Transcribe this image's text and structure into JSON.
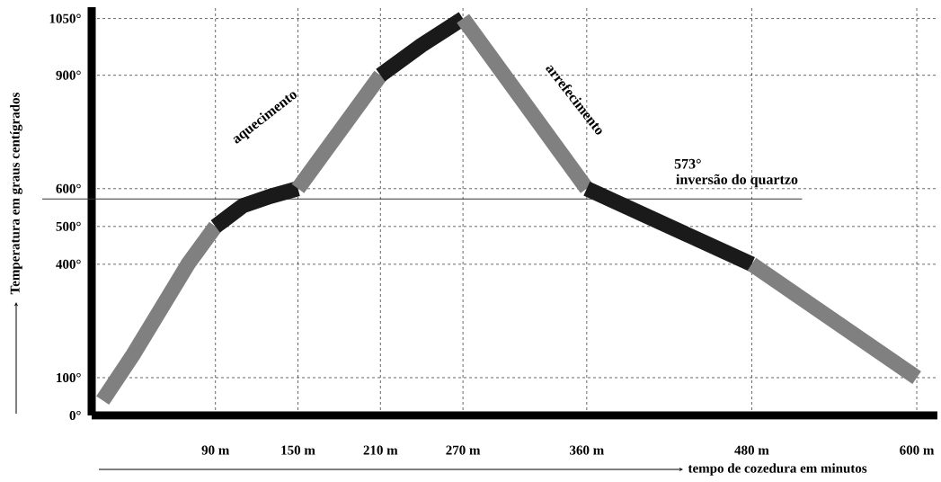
{
  "chart_data": {
    "type": "line",
    "xlabel": "tempo de cozedura em minutos",
    "ylabel": "Temperatura em graus centígrados",
    "xlim": [
      0,
      615
    ],
    "ylim": [
      0,
      1080
    ],
    "xticks": [
      {
        "value": 90,
        "label": "90 m"
      },
      {
        "value": 150,
        "label": "150 m"
      },
      {
        "value": 210,
        "label": "210 m"
      },
      {
        "value": 270,
        "label": "270 m"
      },
      {
        "value": 360,
        "label": "360 m"
      },
      {
        "value": 480,
        "label": "480 m"
      },
      {
        "value": 600,
        "label": "600 m"
      }
    ],
    "yticks": [
      {
        "value": 0,
        "label": "0°"
      },
      {
        "value": 100,
        "label": "100°"
      },
      {
        "value": 400,
        "label": "400°"
      },
      {
        "value": 500,
        "label": "500°"
      },
      {
        "value": 600,
        "label": "600°"
      },
      {
        "value": 900,
        "label": "900°"
      },
      {
        "value": 1050,
        "label": "1050°"
      }
    ],
    "grid": true,
    "line_style": "solid",
    "marker": "none",
    "series": [
      {
        "color": "#808080",
        "x": [
          8,
          30,
          50,
          70,
          90
        ],
        "values": [
          40,
          160,
          280,
          400,
          500
        ]
      },
      {
        "color": "#1a1a1a",
        "x": [
          90,
          110,
          130,
          150
        ],
        "values": [
          500,
          555,
          580,
          600
        ]
      },
      {
        "color": "#808080",
        "x": [
          150,
          210
        ],
        "values": [
          600,
          900
        ]
      },
      {
        "color": "#1a1a1a",
        "x": [
          210,
          240,
          270
        ],
        "values": [
          900,
          980,
          1050
        ]
      },
      {
        "color": "#808080",
        "x": [
          270,
          360
        ],
        "values": [
          1050,
          600
        ]
      },
      {
        "color": "#1a1a1a",
        "x": [
          360,
          480
        ],
        "values": [
          600,
          400
        ]
      },
      {
        "color": "#808080",
        "x": [
          480,
          600
        ],
        "values": [
          400,
          100
        ]
      }
    ],
    "ref_lines": [
      {
        "axis": "y",
        "value": 573,
        "label": "573°",
        "color": "#333333",
        "line_style": "solid"
      }
    ],
    "annotations": [
      "aquecimento",
      "arrefecimento",
      "inversão do quartzo"
    ]
  }
}
